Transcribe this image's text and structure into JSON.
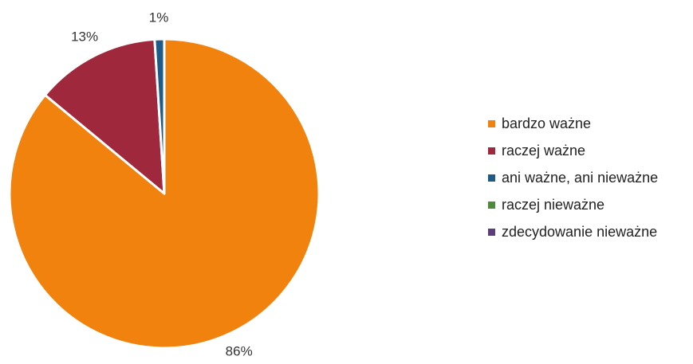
{
  "chart_data": {
    "type": "pie",
    "categories": [
      "bardzo ważne",
      "raczej ważne",
      "ani ważne, ani nieważne",
      "raczej nieważne",
      "zdecydowanie nieważne"
    ],
    "values": [
      86,
      13,
      1,
      0,
      0
    ],
    "labels": [
      "86%",
      "13%",
      "1%",
      "",
      ""
    ],
    "colors": [
      "#F0820D",
      "#A0283C",
      "#1F5B87",
      "#4E8A3A",
      "#5E3E7A"
    ],
    "legend_position": "right"
  }
}
